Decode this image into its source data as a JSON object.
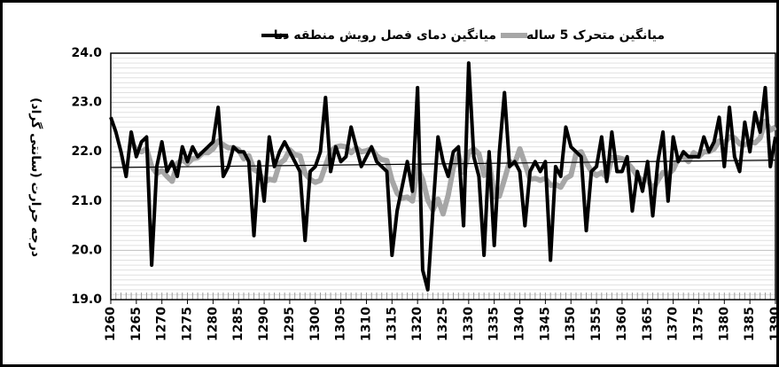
{
  "chart_data": {
    "type": "line",
    "y_label": "درجه حرارت (سانتی گراد)",
    "x": [
      1260,
      1261,
      1262,
      1263,
      1264,
      1265,
      1266,
      1267,
      1268,
      1269,
      1270,
      1271,
      1272,
      1273,
      1274,
      1275,
      1276,
      1277,
      1278,
      1279,
      1280,
      1281,
      1282,
      1283,
      1284,
      1285,
      1286,
      1287,
      1288,
      1289,
      1290,
      1291,
      1292,
      1293,
      1294,
      1295,
      1296,
      1297,
      1298,
      1299,
      1300,
      1301,
      1302,
      1303,
      1304,
      1305,
      1306,
      1307,
      1308,
      1309,
      1310,
      1311,
      1312,
      1313,
      1314,
      1315,
      1316,
      1317,
      1318,
      1319,
      1320,
      1321,
      1322,
      1323,
      1324,
      1325,
      1326,
      1327,
      1328,
      1329,
      1330,
      1331,
      1332,
      1333,
      1334,
      1335,
      1336,
      1337,
      1338,
      1339,
      1340,
      1341,
      1342,
      1343,
      1344,
      1345,
      1346,
      1347,
      1348,
      1349,
      1350,
      1351,
      1352,
      1353,
      1354,
      1355,
      1356,
      1357,
      1358,
      1359,
      1360,
      1361,
      1362,
      1363,
      1364,
      1365,
      1366,
      1367,
      1368,
      1369,
      1370,
      1371,
      1372,
      1373,
      1374,
      1375,
      1376,
      1377,
      1378,
      1379,
      1380,
      1381,
      1382,
      1383,
      1384,
      1385,
      1386,
      1387,
      1388,
      1389,
      1390
    ],
    "series": [
      {
        "name": "میانگین دمای فصل رویش منطقه دنا",
        "color": "#000000",
        "width": 4,
        "values": [
          22.7,
          22.4,
          22.0,
          21.5,
          22.4,
          21.9,
          22.2,
          22.3,
          19.7,
          21.7,
          22.2,
          21.6,
          21.8,
          21.5,
          22.1,
          21.8,
          22.1,
          21.9,
          22.0,
          22.1,
          22.2,
          22.9,
          21.5,
          21.7,
          22.1,
          22.0,
          22.0,
          21.8,
          20.3,
          21.8,
          21.0,
          22.3,
          21.7,
          22.0,
          22.2,
          22.0,
          21.8,
          21.6,
          20.2,
          21.6,
          21.7,
          22.0,
          23.1,
          21.6,
          22.1,
          21.8,
          21.9,
          22.5,
          22.1,
          21.7,
          21.9,
          22.1,
          21.8,
          21.7,
          21.6,
          19.9,
          20.8,
          21.3,
          21.8,
          21.2,
          23.3,
          19.6,
          19.2,
          20.8,
          22.3,
          21.8,
          21.5,
          22.0,
          22.1,
          20.5,
          23.8,
          21.9,
          21.5,
          19.9,
          22.0,
          20.1,
          22.0,
          23.2,
          21.7,
          21.8,
          21.6,
          20.5,
          21.6,
          21.8,
          21.6,
          21.8,
          19.8,
          21.7,
          21.5,
          22.5,
          22.1,
          22.0,
          21.9,
          20.4,
          21.6,
          21.7,
          22.3,
          21.4,
          22.4,
          21.6,
          21.6,
          21.9,
          20.8,
          21.6,
          21.2,
          21.8,
          20.7,
          21.8,
          22.4,
          21.0,
          22.3,
          21.8,
          22.0,
          21.9,
          21.9,
          21.9,
          22.3,
          22.0,
          22.2,
          22.7,
          21.7,
          22.9,
          21.9,
          21.6,
          22.6,
          22.0,
          22.8,
          22.4,
          23.3,
          21.7,
          22.3
        ]
      },
      {
        "name": "میانگین متحرک 5 ساله",
        "color": "#a6a6a6",
        "width": 6,
        "values": [
          null,
          null,
          null,
          null,
          22.2,
          22.04,
          22.0,
          22.06,
          21.7,
          21.56,
          21.62,
          21.5,
          21.4,
          21.76,
          21.84,
          21.76,
          21.86,
          21.88,
          21.98,
          21.98,
          22.06,
          22.22,
          22.14,
          22.08,
          22.08,
          22.04,
          21.86,
          21.92,
          21.64,
          21.58,
          21.38,
          21.44,
          21.42,
          21.76,
          21.84,
          22.04,
          21.94,
          21.92,
          21.56,
          21.44,
          21.38,
          21.42,
          21.72,
          22.0,
          22.1,
          22.12,
          22.1,
          21.98,
          22.08,
          22.0,
          22.02,
          22.06,
          21.92,
          21.84,
          21.82,
          21.42,
          21.16,
          21.06,
          21.08,
          21.0,
          21.68,
          21.44,
          21.02,
          20.82,
          21.04,
          20.74,
          21.12,
          21.68,
          21.94,
          21.58,
          21.98,
          22.06,
          21.96,
          21.52,
          21.82,
          21.08,
          21.1,
          21.44,
          21.8,
          21.76,
          22.06,
          21.76,
          21.44,
          21.46,
          21.42,
          21.46,
          21.32,
          21.34,
          21.28,
          21.46,
          21.52,
          21.96,
          22.0,
          21.78,
          21.6,
          21.52,
          21.58,
          21.48,
          21.88,
          21.88,
          21.86,
          21.78,
          21.66,
          21.5,
          21.42,
          21.46,
          21.22,
          21.42,
          21.58,
          21.54,
          21.64,
          21.86,
          21.9,
          21.8,
          21.98,
          21.9,
          22.0,
          22.0,
          22.06,
          22.22,
          22.18,
          22.3,
          22.28,
          22.16,
          22.14,
          22.2,
          22.18,
          22.28,
          22.62,
          22.44,
          22.5
        ]
      }
    ],
    "trend": {
      "x": [
        1260,
        1390
      ],
      "values": [
        21.68,
        21.83
      ],
      "color": "#000000"
    },
    "xlim": [
      1260,
      1390
    ],
    "xticks": [
      1260,
      1265,
      1270,
      1275,
      1280,
      1285,
      1290,
      1295,
      1300,
      1305,
      1310,
      1315,
      1320,
      1325,
      1330,
      1335,
      1340,
      1345,
      1350,
      1355,
      1360,
      1365,
      1370,
      1375,
      1380,
      1385,
      1390
    ],
    "ylim": [
      19,
      24
    ],
    "yticks": [
      {
        "value": 19,
        "label": "19.0"
      },
      {
        "value": 20,
        "label": "20.0"
      },
      {
        "value": 21,
        "label": "21.0"
      },
      {
        "value": 22,
        "label": "22.0"
      },
      {
        "value": 23,
        "label": "23.0"
      },
      {
        "value": 24,
        "label": "24.0"
      }
    ],
    "grid": true,
    "minor_grid": true,
    "legend": "top"
  }
}
